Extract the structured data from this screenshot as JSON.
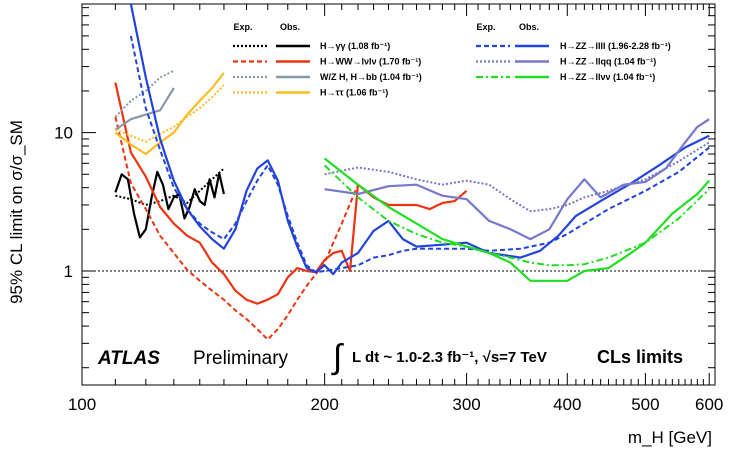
{
  "chart_data": {
    "type": "line",
    "title": "",
    "xlabel": "m_H [GeV]",
    "ylabel": "95% CL limit on σ/σ_SM",
    "x_scale": "log",
    "y_scale": "log",
    "xlim": [
      100,
      610
    ],
    "ylim": [
      0.15,
      85
    ],
    "x_tick_labels": [
      "100",
      "200",
      "300",
      "400",
      "500",
      "600"
    ],
    "x_ticks": [
      100,
      200,
      300,
      400,
      500,
      600
    ],
    "y_tick_labels": [
      "1",
      "10"
    ],
    "y_ticks": [
      1,
      10
    ],
    "reference_line": 1,
    "legend_position": "top",
    "legend_headers": {
      "exp": "Exp.",
      "obs": "Obs."
    },
    "annotations": {
      "atlas": "ATLAS",
      "preliminary": "Preliminary",
      "luminosity": "L dt ~ 1.0-2.3 fb⁻¹, √s=7 TeV",
      "integral": "∫",
      "method": "CLs limits"
    },
    "colors": {
      "gg": "#000000",
      "ww": "#ee3311",
      "bb": "#8899aa",
      "tt": "#ffbb22",
      "zz4l": "#2244dd",
      "zzllqq": "#7777cc",
      "zzllvv": "#22dd22"
    },
    "series": [
      {
        "key": "gg",
        "name": "H→γγ (1.08 fb⁻¹)",
        "style": "exp",
        "x": [
          110,
          115,
          120,
          125,
          130,
          135,
          140,
          145,
          150
        ],
        "y": [
          3.5,
          3.3,
          3.0,
          3.2,
          3.5,
          3.1,
          3.8,
          4.6,
          5.5
        ]
      },
      {
        "key": "gg",
        "name": "H→γγ (1.08 fb⁻¹)",
        "style": "obs",
        "x": [
          110,
          112,
          114,
          116,
          118,
          120,
          122,
          124,
          126,
          128,
          130,
          132,
          134,
          136,
          138,
          140,
          142,
          144,
          146,
          148,
          150
        ],
        "y": [
          3.7,
          5.0,
          4.6,
          2.6,
          1.75,
          2.0,
          3.4,
          5.2,
          4.2,
          2.8,
          3.4,
          3.6,
          2.4,
          2.9,
          3.9,
          3.2,
          3.0,
          4.6,
          3.4,
          5.1,
          3.6
        ]
      },
      {
        "key": "ww",
        "name": "H→WW→lνlν (1.70 fb⁻¹)",
        "style": "exp",
        "x": [
          110,
          115,
          120,
          125,
          130,
          135,
          140,
          145,
          150,
          155,
          160,
          165,
          170,
          175,
          180,
          185,
          190,
          200,
          210,
          220
        ],
        "y": [
          13,
          4.3,
          2.8,
          1.8,
          1.35,
          1.02,
          0.85,
          0.72,
          0.62,
          0.52,
          0.45,
          0.38,
          0.32,
          0.38,
          0.48,
          0.62,
          0.78,
          1.15,
          2.2,
          4.2
        ]
      },
      {
        "key": "ww",
        "name": "H→WW→lνlν (1.70 fb⁻¹)",
        "style": "obs",
        "x": [
          110,
          115,
          120,
          125,
          130,
          135,
          140,
          145,
          150,
          155,
          160,
          165,
          170,
          175,
          180,
          185,
          190,
          195,
          200,
          205,
          210,
          215,
          220,
          230,
          240,
          250,
          260,
          270,
          280,
          290,
          300
        ],
        "y": [
          23,
          7.2,
          4.8,
          2.9,
          2.2,
          1.8,
          1.6,
          1.15,
          0.95,
          0.72,
          0.62,
          0.58,
          0.62,
          0.68,
          0.9,
          1.05,
          1.0,
          0.98,
          1.2,
          1.35,
          1.4,
          1.0,
          4.2,
          3.4,
          3.0,
          3.0,
          3.0,
          2.8,
          3.1,
          3.2,
          3.8
        ]
      },
      {
        "key": "bb",
        "name": "W/Z H, H→bb (1.04 fb⁻¹)",
        "style": "exp",
        "x": [
          110,
          115,
          120,
          125,
          130
        ],
        "y": [
          13,
          17,
          20,
          25,
          28
        ]
      },
      {
        "key": "bb",
        "name": "W/Z H, H→bb (1.04 fb⁻¹)",
        "style": "obs",
        "x": [
          110,
          115,
          120,
          125,
          130
        ],
        "y": [
          10.5,
          12.5,
          13.5,
          14.5,
          21
        ]
      },
      {
        "key": "tt",
        "name": "H→ττ (1.06 fb⁻¹)",
        "style": "exp",
        "x": [
          110,
          115,
          120,
          125,
          130,
          135,
          140,
          145,
          150
        ],
        "y": [
          10.5,
          9.5,
          8.6,
          9.8,
          11,
          13,
          15,
          18,
          22
        ]
      },
      {
        "key": "tt",
        "name": "H→ττ (1.06 fb⁻¹)",
        "style": "obs",
        "x": [
          110,
          115,
          120,
          125,
          130,
          135,
          140,
          145,
          150
        ],
        "y": [
          10,
          8.2,
          7.0,
          8.5,
          10,
          13.5,
          17,
          21,
          27
        ]
      },
      {
        "key": "zz4l",
        "name": "H→ZZ→llll (1.96-2.28 fb⁻¹)",
        "style": "exp",
        "x": [
          115,
          120,
          125,
          130,
          135,
          140,
          145,
          150,
          155,
          160,
          165,
          170,
          175,
          180,
          185,
          190,
          195,
          200,
          210,
          220,
          230,
          240,
          250,
          260,
          280,
          300,
          320,
          350,
          380,
          400,
          420,
          450,
          500,
          550,
          600
        ],
        "y": [
          50,
          15,
          7.5,
          4.0,
          2.8,
          2.2,
          1.9,
          1.7,
          2.2,
          3.2,
          4.5,
          5.8,
          4.2,
          2.5,
          1.6,
          1.1,
          0.98,
          1.0,
          1.05,
          1.1,
          1.25,
          1.3,
          1.4,
          1.45,
          1.45,
          1.45,
          1.4,
          1.45,
          1.6,
          1.85,
          2.2,
          2.8,
          3.8,
          5.2,
          7.8
        ]
      },
      {
        "key": "zz4l",
        "name": "H→ZZ→llll (1.96-2.28 fb⁻¹)",
        "style": "obs",
        "x": [
          115,
          120,
          125,
          130,
          135,
          140,
          145,
          150,
          155,
          160,
          165,
          170,
          175,
          180,
          185,
          190,
          195,
          200,
          205,
          210,
          220,
          230,
          240,
          250,
          260,
          280,
          300,
          320,
          350,
          370,
          390,
          410,
          440,
          480,
          520,
          560,
          600
        ],
        "y": [
          85,
          25,
          9.0,
          4.5,
          2.8,
          2.1,
          1.7,
          1.45,
          2.0,
          3.8,
          5.5,
          6.3,
          4.5,
          2.3,
          1.5,
          1.05,
          0.98,
          1.1,
          0.95,
          1.15,
          1.35,
          1.95,
          2.3,
          1.7,
          1.5,
          1.55,
          1.6,
          1.35,
          1.25,
          1.4,
          1.8,
          2.5,
          3.2,
          4.3,
          5.8,
          7.8,
          9.5
        ]
      },
      {
        "key": "zzllqq",
        "name": "H→ZZ→llqq (1.04 fb⁻¹)",
        "style": "exp",
        "x": [
          200,
          220,
          240,
          260,
          280,
          300,
          320,
          340,
          360,
          380,
          400,
          420,
          450,
          500,
          550,
          600
        ],
        "y": [
          5.0,
          5.6,
          5.2,
          4.6,
          4.2,
          4.5,
          4.2,
          3.3,
          2.7,
          2.8,
          3.0,
          3.4,
          3.8,
          4.6,
          6.2,
          8.5
        ]
      },
      {
        "key": "zzllqq",
        "name": "H→ZZ→llqq (1.04 fb⁻¹)",
        "style": "obs",
        "x": [
          200,
          220,
          240,
          260,
          280,
          300,
          320,
          340,
          360,
          380,
          400,
          420,
          440,
          470,
          500,
          530,
          560,
          580,
          600
        ],
        "y": [
          3.9,
          3.6,
          4.1,
          4.2,
          3.5,
          3.3,
          2.3,
          2.0,
          1.7,
          2.0,
          3.3,
          4.6,
          3.4,
          4.2,
          4.4,
          5.5,
          8.5,
          11,
          12.5
        ]
      },
      {
        "key": "zzllvv",
        "name": "H→ZZ→llνν (1.04 fb⁻¹)",
        "style": "exp",
        "x": [
          200,
          220,
          240,
          260,
          280,
          300,
          320,
          340,
          360,
          380,
          400,
          420,
          450,
          500,
          550,
          600
        ],
        "y": [
          5.8,
          3.4,
          2.3,
          1.85,
          1.6,
          1.5,
          1.35,
          1.25,
          1.15,
          1.1,
          1.1,
          1.12,
          1.25,
          1.6,
          2.4,
          3.9
        ]
      },
      {
        "key": "zzllvv",
        "name": "H→ZZ→llνν (1.04 fb⁻¹)",
        "style": "obs",
        "x": [
          200,
          220,
          240,
          260,
          280,
          300,
          320,
          340,
          360,
          380,
          400,
          420,
          450,
          480,
          500,
          540,
          580,
          600
        ],
        "y": [
          6.5,
          4.2,
          2.9,
          2.2,
          1.7,
          1.5,
          1.35,
          1.15,
          0.85,
          0.85,
          0.85,
          1.0,
          1.05,
          1.35,
          1.6,
          2.6,
          3.6,
          4.5
        ]
      }
    ]
  }
}
